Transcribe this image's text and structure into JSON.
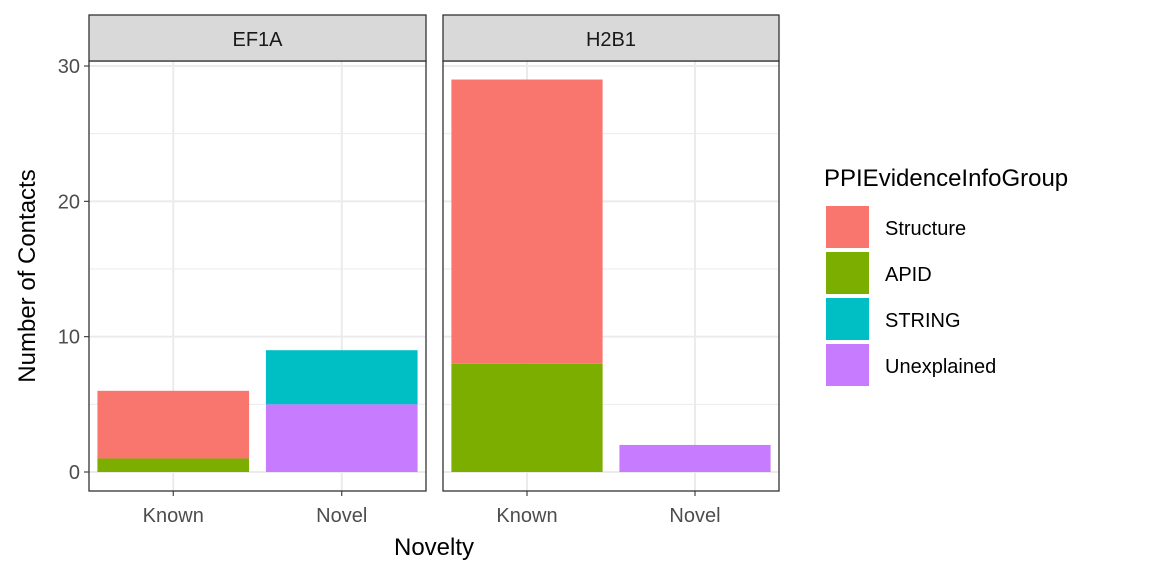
{
  "chart_data": {
    "type": "bar",
    "stacked": true,
    "facets": [
      "EF1A",
      "H2B1"
    ],
    "categories": [
      "Known",
      "Novel"
    ],
    "xlabel": "Novelty",
    "ylabel": "Number of Contacts",
    "ylim": [
      0,
      30
    ],
    "yticks": [
      0,
      10,
      20,
      30
    ],
    "grid": true,
    "legend": {
      "title": "PPIEvidenceInfoGroup",
      "position": "right",
      "entries": [
        "Structure",
        "APID",
        "STRING",
        "Unexplained"
      ]
    },
    "colors": {
      "Structure": "#F8766D",
      "APID": "#7CAE00",
      "STRING": "#00BFC4",
      "Unexplained": "#C77CFF"
    },
    "series": [
      {
        "name": "Structure",
        "values": {
          "EF1A": [
            5,
            0
          ],
          "H2B1": [
            21,
            0
          ]
        }
      },
      {
        "name": "APID",
        "values": {
          "EF1A": [
            1,
            0
          ],
          "H2B1": [
            8,
            0
          ]
        }
      },
      {
        "name": "STRING",
        "values": {
          "EF1A": [
            0,
            4
          ],
          "H2B1": [
            0,
            0
          ]
        }
      },
      {
        "name": "Unexplained",
        "values": {
          "EF1A": [
            0,
            5
          ],
          "H2B1": [
            0,
            2
          ]
        }
      }
    ]
  }
}
